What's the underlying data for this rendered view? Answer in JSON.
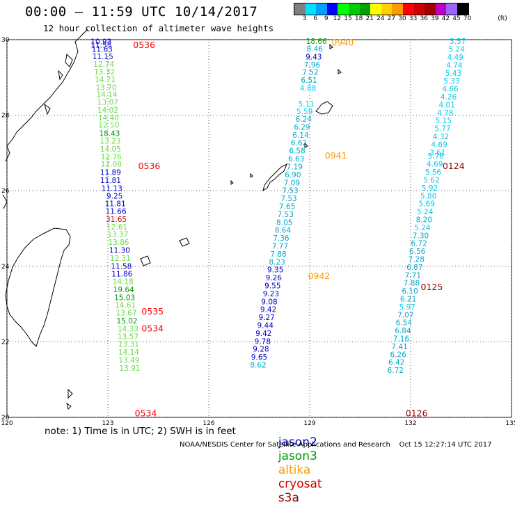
{
  "header": {
    "title": "00:00 – 11:59 UTC 10/14/2017",
    "subtitle": "12 hour collection of altimeter wave heights"
  },
  "colorbar": {
    "colors": [
      "#7f7f7f",
      "#00e0ff",
      "#00a0ff",
      "#0000ff",
      "#00ff00",
      "#00cc00",
      "#00a000",
      "#ffff00",
      "#ffd000",
      "#ff9900",
      "#ff0000",
      "#cc0000",
      "#a00000",
      "#c000c0",
      "#9966ff",
      "#000000"
    ],
    "labels": [
      "3",
      "6",
      "9",
      "12",
      "15",
      "18",
      "21",
      "24",
      "27",
      "30",
      "33",
      "36",
      "39",
      "42",
      "45",
      "70",
      "(ft)"
    ]
  },
  "axes": {
    "lon_min": 120,
    "lon_max": 135,
    "lat_min": 20,
    "lat_max": 30,
    "lon_ticks": [
      "120",
      "123",
      "126",
      "129",
      "132",
      "135"
    ],
    "lat_ticks": [
      "30",
      "28",
      "26",
      "24",
      "22",
      "20"
    ]
  },
  "satellites": {
    "jason2": {
      "name": "jason2",
      "color": "#0000cc"
    },
    "jason3": {
      "name": "jason3",
      "color": "#009900"
    },
    "altika": {
      "name": "altika",
      "color": "#ff9900"
    },
    "cryosat": {
      "name": "cryosat",
      "color": "#cc0000"
    },
    "s3a": {
      "name": "s3a",
      "color": "#990000"
    }
  },
  "tracks": [
    {
      "id": "track-123",
      "time_labels": [
        {
          "text": "0536",
          "lat": 29.87,
          "lon": 123.75,
          "color": "#ff0000"
        },
        {
          "text": "0536",
          "lat": 26.67,
          "lon": 123.9,
          "color": "#ff0000"
        },
        {
          "text": "0535",
          "lat": 22.82,
          "lon": 124.0,
          "color": "#ff0000"
        },
        {
          "text": "0534",
          "lat": 22.37,
          "lon": 124.0,
          "color": "#ff0000"
        },
        {
          "text": "0534",
          "lat": 20.12,
          "lon": 123.8,
          "color": "#ff0000"
        }
      ],
      "points": [
        {
          "v": "10.93",
          "lat": 29.95,
          "lon": 122.8,
          "c": "#0000cc"
        },
        {
          "v": "11.55",
          "lat": 29.86,
          "lon": 122.8,
          "c": "#0000cc"
        },
        {
          "v": "11.63",
          "lat": 29.75,
          "lon": 122.83,
          "c": "#0000cc"
        },
        {
          "v": "11.15",
          "lat": 29.56,
          "lon": 122.85,
          "c": "#0000cc"
        },
        {
          "v": "12.74",
          "lat": 29.36,
          "lon": 122.88,
          "c": "#66dd44"
        },
        {
          "v": "13.32",
          "lat": 29.15,
          "lon": 122.9,
          "c": "#66dd44"
        },
        {
          "v": "14.71",
          "lat": 28.95,
          "lon": 122.92,
          "c": "#66dd44"
        },
        {
          "v": "13.70",
          "lat": 28.74,
          "lon": 122.95,
          "c": "#66dd44"
        },
        {
          "v": "14.14",
          "lat": 28.55,
          "lon": 122.97,
          "c": "#66dd44"
        },
        {
          "v": "13.07",
          "lat": 28.35,
          "lon": 123.0,
          "c": "#66dd44"
        },
        {
          "v": "14.02",
          "lat": 28.14,
          "lon": 123.0,
          "c": "#66dd44"
        },
        {
          "v": "14.40",
          "lat": 27.94,
          "lon": 123.02,
          "c": "#66dd44"
        },
        {
          "v": "12.50",
          "lat": 27.74,
          "lon": 123.03,
          "c": "#66dd44"
        },
        {
          "v": "18.43",
          "lat": 27.52,
          "lon": 123.05,
          "c": "#009900"
        },
        {
          "v": "13.23",
          "lat": 27.32,
          "lon": 123.07,
          "c": "#66dd44"
        },
        {
          "v": "14.05",
          "lat": 27.11,
          "lon": 123.08,
          "c": "#66dd44"
        },
        {
          "v": "12.76",
          "lat": 26.91,
          "lon": 123.1,
          "c": "#66dd44"
        },
        {
          "v": "12.08",
          "lat": 26.71,
          "lon": 123.1,
          "c": "#66dd44"
        },
        {
          "v": "11.89",
          "lat": 26.49,
          "lon": 123.08,
          "c": "#0000cc"
        },
        {
          "v": "11.81",
          "lat": 26.28,
          "lon": 123.08,
          "c": "#0000cc"
        },
        {
          "v": "11.13",
          "lat": 26.07,
          "lon": 123.12,
          "c": "#0000cc"
        },
        {
          "v": "9.25",
          "lat": 25.87,
          "lon": 123.2,
          "c": "#0000cc"
        },
        {
          "v": "11.81",
          "lat": 25.66,
          "lon": 123.22,
          "c": "#0000cc"
        },
        {
          "v": "11.66",
          "lat": 25.46,
          "lon": 123.24,
          "c": "#0000cc"
        },
        {
          "v": "31.65",
          "lat": 25.25,
          "lon": 123.25,
          "c": "#cc0000"
        },
        {
          "v": "12.61",
          "lat": 25.05,
          "lon": 123.27,
          "c": "#66dd44"
        },
        {
          "v": "13.37",
          "lat": 24.85,
          "lon": 123.3,
          "c": "#66dd44"
        },
        {
          "v": "13.86",
          "lat": 24.64,
          "lon": 123.32,
          "c": "#66dd44"
        },
        {
          "v": "11.30",
          "lat": 24.43,
          "lon": 123.35,
          "c": "#0000cc"
        },
        {
          "v": "12.31",
          "lat": 24.22,
          "lon": 123.37,
          "c": "#66dd44"
        },
        {
          "v": "11.58",
          "lat": 24.01,
          "lon": 123.4,
          "c": "#0000cc"
        },
        {
          "v": "11.86",
          "lat": 23.8,
          "lon": 123.42,
          "c": "#0000cc"
        },
        {
          "v": "14.18",
          "lat": 23.6,
          "lon": 123.45,
          "c": "#66dd44"
        },
        {
          "v": "19.64",
          "lat": 23.39,
          "lon": 123.47,
          "c": "#009900"
        },
        {
          "v": "15.03",
          "lat": 23.18,
          "lon": 123.5,
          "c": "#009900"
        },
        {
          "v": "14.61",
          "lat": 22.97,
          "lon": 123.52,
          "c": "#66dd44"
        },
        {
          "v": "13.67",
          "lat": 22.77,
          "lon": 123.55,
          "c": "#66dd44"
        },
        {
          "v": "15.02",
          "lat": 22.56,
          "lon": 123.57,
          "c": "#009900"
        },
        {
          "v": "14.33",
          "lat": 22.35,
          "lon": 123.6,
          "c": "#66dd44"
        },
        {
          "v": "13.57",
          "lat": 22.15,
          "lon": 123.6,
          "c": "#66dd44"
        },
        {
          "v": "13.31",
          "lat": 21.94,
          "lon": 123.62,
          "c": "#66dd44"
        },
        {
          "v": "14.14",
          "lat": 21.73,
          "lon": 123.62,
          "c": "#66dd44"
        },
        {
          "v": "13.49",
          "lat": 21.52,
          "lon": 123.63,
          "c": "#66dd44"
        },
        {
          "v": "13.91",
          "lat": 21.31,
          "lon": 123.65,
          "c": "#66dd44"
        }
      ]
    },
    {
      "id": "track-129",
      "time_labels": [
        {
          "text": "0940",
          "lat": 29.94,
          "lon": 129.65,
          "color": "#ff9900"
        },
        {
          "text": "0941",
          "lat": 26.94,
          "lon": 129.45,
          "color": "#ff9900"
        },
        {
          "text": "0942",
          "lat": 23.76,
          "lon": 128.95,
          "color": "#ff9900"
        }
      ],
      "points": [
        {
          "v": "18.66",
          "lat": 29.96,
          "lon": 129.2,
          "c": "#00aa00"
        },
        {
          "v": "8.46",
          "lat": 29.76,
          "lon": 129.15,
          "c": "#00aacc"
        },
        {
          "v": "9.43",
          "lat": 29.55,
          "lon": 129.12,
          "c": "#0000cc"
        },
        {
          "v": "7.96",
          "lat": 29.34,
          "lon": 129.07,
          "c": "#00aacc"
        },
        {
          "v": "7.52",
          "lat": 29.14,
          "lon": 129.02,
          "c": "#00aacc"
        },
        {
          "v": "6.51",
          "lat": 28.93,
          "lon": 128.98,
          "c": "#00aacc"
        },
        {
          "v": "4.88",
          "lat": 28.72,
          "lon": 128.95,
          "c": "#00ccee"
        },
        {
          "v": "5.11",
          "lat": 28.31,
          "lon": 128.9,
          "c": "#00ccee"
        },
        {
          "v": "5.59",
          "lat": 28.1,
          "lon": 128.85,
          "c": "#00ccee"
        },
        {
          "v": "6.24",
          "lat": 27.9,
          "lon": 128.82,
          "c": "#00aacc"
        },
        {
          "v": "6.29",
          "lat": 27.69,
          "lon": 128.77,
          "c": "#00aacc"
        },
        {
          "v": "6.14",
          "lat": 27.48,
          "lon": 128.73,
          "c": "#00aacc"
        },
        {
          "v": "6.62",
          "lat": 27.27,
          "lon": 128.68,
          "c": "#00aacc"
        },
        {
          "v": "6.58",
          "lat": 27.06,
          "lon": 128.63,
          "c": "#00aacc"
        },
        {
          "v": "6.63",
          "lat": 26.85,
          "lon": 128.6,
          "c": "#00aacc"
        },
        {
          "v": "7.19",
          "lat": 26.64,
          "lon": 128.55,
          "c": "#00aacc"
        },
        {
          "v": "6.90",
          "lat": 26.43,
          "lon": 128.5,
          "c": "#00aacc"
        },
        {
          "v": "7.09",
          "lat": 26.22,
          "lon": 128.47,
          "c": "#00aacc"
        },
        {
          "v": "7.53",
          "lat": 26.01,
          "lon": 128.42,
          "c": "#00aacc"
        },
        {
          "v": "7.53",
          "lat": 25.8,
          "lon": 128.38,
          "c": "#00aacc"
        },
        {
          "v": "7.65",
          "lat": 25.59,
          "lon": 128.33,
          "c": "#00aacc"
        },
        {
          "v": "7.53",
          "lat": 25.38,
          "lon": 128.28,
          "c": "#00aacc"
        },
        {
          "v": "8.05",
          "lat": 25.17,
          "lon": 128.25,
          "c": "#00aacc"
        },
        {
          "v": "8.64",
          "lat": 24.96,
          "lon": 128.2,
          "c": "#00aacc"
        },
        {
          "v": "7.36",
          "lat": 24.75,
          "lon": 128.15,
          "c": "#00aacc"
        },
        {
          "v": "7.77",
          "lat": 24.54,
          "lon": 128.12,
          "c": "#00aacc"
        },
        {
          "v": "7.88",
          "lat": 24.33,
          "lon": 128.07,
          "c": "#00aacc"
        },
        {
          "v": "8.23",
          "lat": 24.12,
          "lon": 128.03,
          "c": "#00aacc"
        },
        {
          "v": "9.35",
          "lat": 23.91,
          "lon": 127.98,
          "c": "#0000cc"
        },
        {
          "v": "9.26",
          "lat": 23.7,
          "lon": 127.93,
          "c": "#0000cc"
        },
        {
          "v": "9.55",
          "lat": 23.49,
          "lon": 127.9,
          "c": "#0000cc"
        },
        {
          "v": "9.23",
          "lat": 23.28,
          "lon": 127.85,
          "c": "#0000cc"
        },
        {
          "v": "9.08",
          "lat": 23.07,
          "lon": 127.8,
          "c": "#0000cc"
        },
        {
          "v": "9.42",
          "lat": 22.86,
          "lon": 127.77,
          "c": "#0000cc"
        },
        {
          "v": "9.27",
          "lat": 22.65,
          "lon": 127.72,
          "c": "#0000cc"
        },
        {
          "v": "9.44",
          "lat": 22.44,
          "lon": 127.68,
          "c": "#0000cc"
        },
        {
          "v": "9.42",
          "lat": 22.23,
          "lon": 127.63,
          "c": "#0000cc"
        },
        {
          "v": "9.78",
          "lat": 22.02,
          "lon": 127.6,
          "c": "#0000cc"
        },
        {
          "v": "9.28",
          "lat": 21.81,
          "lon": 127.55,
          "c": "#0000cc"
        },
        {
          "v": "9.65",
          "lat": 21.6,
          "lon": 127.5,
          "c": "#0000cc"
        },
        {
          "v": "8.62",
          "lat": 21.39,
          "lon": 127.47,
          "c": "#00aacc"
        }
      ]
    },
    {
      "id": "track-132",
      "time_labels": [
        {
          "text": "0124",
          "lat": 26.67,
          "lon": 132.95,
          "color": "#990000"
        },
        {
          "text": "0125",
          "lat": 23.46,
          "lon": 132.3,
          "color": "#990000"
        },
        {
          "text": "0126",
          "lat": 20.12,
          "lon": 131.85,
          "color": "#990000"
        }
      ],
      "points": [
        {
          "v": "3.57",
          "lat": 29.96,
          "lon": 133.4,
          "c": "#00ccee"
        },
        {
          "v": "5.24",
          "lat": 29.75,
          "lon": 133.37,
          "c": "#00ccee"
        },
        {
          "v": "4.49",
          "lat": 29.54,
          "lon": 133.33,
          "c": "#00ccee"
        },
        {
          "v": "4.74",
          "lat": 29.33,
          "lon": 133.3,
          "c": "#00ccee"
        },
        {
          "v": "5.43",
          "lat": 29.12,
          "lon": 133.27,
          "c": "#00ccee"
        },
        {
          "v": "5.33",
          "lat": 28.91,
          "lon": 133.22,
          "c": "#00ccee"
        },
        {
          "v": "4.66",
          "lat": 28.7,
          "lon": 133.18,
          "c": "#00ccee"
        },
        {
          "v": "4.26",
          "lat": 28.49,
          "lon": 133.13,
          "c": "#00ccee"
        },
        {
          "v": "4.01",
          "lat": 28.28,
          "lon": 133.08,
          "c": "#00ccee"
        },
        {
          "v": "4.78",
          "lat": 28.07,
          "lon": 133.03,
          "c": "#00ccee"
        },
        {
          "v": "5.15",
          "lat": 27.86,
          "lon": 132.98,
          "c": "#00ccee"
        },
        {
          "v": "5.77",
          "lat": 27.65,
          "lon": 132.95,
          "c": "#00ccee"
        },
        {
          "v": "4.32",
          "lat": 27.44,
          "lon": 132.9,
          "c": "#00ccee"
        },
        {
          "v": "4.69",
          "lat": 27.23,
          "lon": 132.85,
          "c": "#00ccee"
        },
        {
          "v": "3.61",
          "lat": 27.02,
          "lon": 132.8,
          "c": "#00ccee"
        },
        {
          "v": "5.76",
          "lat": 26.92,
          "lon": 132.75,
          "c": "#00ccee"
        },
        {
          "v": "4.69",
          "lat": 26.71,
          "lon": 132.72,
          "c": "#00ccee"
        },
        {
          "v": "5.56",
          "lat": 26.5,
          "lon": 132.67,
          "c": "#00ccee"
        },
        {
          "v": "5.62",
          "lat": 26.29,
          "lon": 132.62,
          "c": "#00ccee"
        },
        {
          "v": "5.92",
          "lat": 26.08,
          "lon": 132.57,
          "c": "#00ccee"
        },
        {
          "v": "5.80",
          "lat": 25.87,
          "lon": 132.53,
          "c": "#00ccee"
        },
        {
          "v": "5.69",
          "lat": 25.66,
          "lon": 132.48,
          "c": "#00ccee"
        },
        {
          "v": "5.24",
          "lat": 25.45,
          "lon": 132.43,
          "c": "#00ccee"
        },
        {
          "v": "8.20",
          "lat": 25.24,
          "lon": 132.4,
          "c": "#00aacc"
        },
        {
          "v": "5.24",
          "lat": 25.03,
          "lon": 132.35,
          "c": "#00ccee"
        },
        {
          "v": "7.30",
          "lat": 24.82,
          "lon": 132.3,
          "c": "#00aacc"
        },
        {
          "v": "6.72",
          "lat": 24.61,
          "lon": 132.25,
          "c": "#00aacc"
        },
        {
          "v": "6.56",
          "lat": 24.4,
          "lon": 132.2,
          "c": "#00aacc"
        },
        {
          "v": "7.28",
          "lat": 24.19,
          "lon": 132.17,
          "c": "#00aacc"
        },
        {
          "v": "6.87",
          "lat": 23.98,
          "lon": 132.12,
          "c": "#00aacc"
        },
        {
          "v": "7.71",
          "lat": 23.77,
          "lon": 132.07,
          "c": "#00aacc"
        },
        {
          "v": "7.88",
          "lat": 23.56,
          "lon": 132.03,
          "c": "#00aacc"
        },
        {
          "v": "6.10",
          "lat": 23.35,
          "lon": 131.98,
          "c": "#00aacc"
        },
        {
          "v": "6.21",
          "lat": 23.14,
          "lon": 131.93,
          "c": "#00aacc"
        },
        {
          "v": "5.97",
          "lat": 22.93,
          "lon": 131.9,
          "c": "#00ccee"
        },
        {
          "v": "7.07",
          "lat": 22.72,
          "lon": 131.85,
          "c": "#00aacc"
        },
        {
          "v": "6.54",
          "lat": 22.51,
          "lon": 131.8,
          "c": "#00aacc"
        },
        {
          "v": "6.84",
          "lat": 22.3,
          "lon": 131.77,
          "c": "#00aacc"
        },
        {
          "v": "7.16",
          "lat": 22.09,
          "lon": 131.72,
          "c": "#00aacc"
        },
        {
          "v": "7.41",
          "lat": 21.88,
          "lon": 131.67,
          "c": "#00aacc"
        },
        {
          "v": "6.26",
          "lat": 21.67,
          "lon": 131.63,
          "c": "#00aacc"
        },
        {
          "v": "6.42",
          "lat": 21.46,
          "lon": 131.58,
          "c": "#00aacc"
        },
        {
          "v": "6.72",
          "lat": 21.25,
          "lon": 131.55,
          "c": "#00aacc"
        }
      ]
    }
  ],
  "note": "note: 1) Time is in UTC; 2) SWH is in feet",
  "footer": "NOAA/NESDIS Center for Satellite Applications and Research    Oct 15 12:27:14 UTC 2017"
}
